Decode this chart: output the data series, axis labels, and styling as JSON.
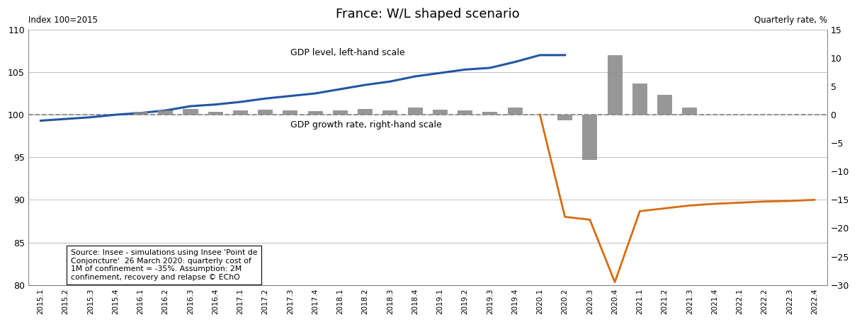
{
  "title": "France: W/L shaped scenario",
  "left_label": "Index 100=2015",
  "right_label": "Quarterly rate, %",
  "left_ylim": [
    80,
    110
  ],
  "right_ylim": [
    -30,
    15
  ],
  "left_yticks": [
    80,
    85,
    90,
    95,
    100,
    105,
    110
  ],
  "right_yticks": [
    -30,
    -25,
    -20,
    -15,
    -10,
    -5,
    0,
    5,
    10,
    15
  ],
  "categories": [
    "2015.1",
    "2015.2",
    "2015.3",
    "2015.4",
    "2016.1",
    "2016.2",
    "2016.3",
    "2016.4",
    "2017.1",
    "2017.2",
    "2017.3",
    "2017.4",
    "2018.1",
    "2018.2",
    "2018.3",
    "2018.4",
    "2019.1",
    "2019.2",
    "2019.3",
    "2019.4",
    "2020.1",
    "2020.2",
    "2020.3",
    "2020.4",
    "2021.1",
    "2021.2",
    "2021.3",
    "2021.4",
    "2022.1",
    "2022.2",
    "2022.3",
    "2022.4"
  ],
  "gdp_level": [
    99.3,
    99.5,
    99.7,
    100.0,
    100.2,
    100.5,
    101.0,
    101.2,
    101.5,
    101.9,
    102.2,
    102.5,
    103.0,
    103.5,
    103.9,
    104.5,
    104.9,
    105.3,
    105.5,
    106.2,
    107.0,
    107.0,
    null,
    null,
    null,
    null,
    null,
    null,
    null,
    null,
    null,
    null
  ],
  "gdp_growth_orange": [
    null,
    null,
    null,
    null,
    null,
    null,
    null,
    null,
    null,
    null,
    null,
    null,
    null,
    null,
    null,
    null,
    null,
    null,
    null,
    null,
    0.0,
    -18.0,
    -18.5,
    -29.5,
    -17.0,
    -16.5,
    -16.0,
    -15.7,
    -15.5,
    -15.3,
    -15.2,
    -15.0
  ],
  "gdp_growth_bars": [
    null,
    null,
    null,
    null,
    0.5,
    0.7,
    1.0,
    0.5,
    0.7,
    0.9,
    0.7,
    0.6,
    0.8,
    1.0,
    0.8,
    1.2,
    0.9,
    0.8,
    0.5,
    1.3,
    null,
    -1.0,
    -8.0,
    10.5,
    5.5,
    3.5,
    1.2,
    null,
    null,
    null,
    null,
    null
  ],
  "source_text": "Source: Insee - simulations using Insee 'Point de\nConjoncture'  26 March 2020: quarterly cost of\n1M of confinement = -35%. Assumption: 2M\nconfinement, recovery and relapse © EChO",
  "blue_color": "#2255A4",
  "orange_color": "#D96B0F",
  "bar_color": "#8C8C8C",
  "dash_color": "#888888",
  "background_color": "#ffffff",
  "grid_color": "#C0C0C0"
}
